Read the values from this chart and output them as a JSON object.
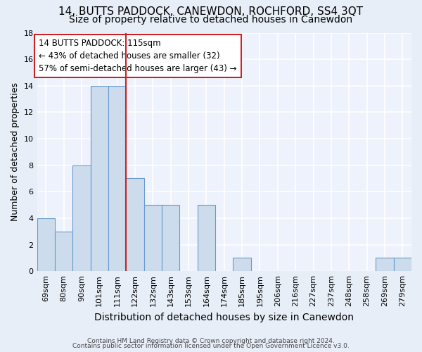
{
  "title": "14, BUTTS PADDOCK, CANEWDON, ROCHFORD, SS4 3QT",
  "subtitle": "Size of property relative to detached houses in Canewdon",
  "xlabel": "Distribution of detached houses by size in Canewdon",
  "ylabel": "Number of detached properties",
  "categories": [
    "69sqm",
    "80sqm",
    "90sqm",
    "101sqm",
    "111sqm",
    "122sqm",
    "132sqm",
    "143sqm",
    "153sqm",
    "164sqm",
    "174sqm",
    "185sqm",
    "195sqm",
    "206sqm",
    "216sqm",
    "227sqm",
    "237sqm",
    "248sqm",
    "258sqm",
    "269sqm",
    "279sqm"
  ],
  "values": [
    4,
    3,
    8,
    14,
    14,
    7,
    5,
    5,
    0,
    5,
    0,
    1,
    0,
    0,
    0,
    0,
    0,
    0,
    0,
    1,
    1
  ],
  "bar_color": "#ccdcec",
  "bar_edge_color": "#6699cc",
  "vline_x_index": 4,
  "vline_color": "#cc2222",
  "annotation_text": "14 BUTTS PADDOCK: 115sqm\n← 43% of detached houses are smaller (32)\n57% of semi-detached houses are larger (43) →",
  "annotation_box_color": "#ffffff",
  "annotation_box_edge": "#cc2222",
  "ylim": [
    0,
    18
  ],
  "yticks": [
    0,
    2,
    4,
    6,
    8,
    10,
    12,
    14,
    16,
    18
  ],
  "footer_line1": "Contains HM Land Registry data © Crown copyright and database right 2024.",
  "footer_line2": "Contains public sector information licensed under the Open Government Licence v3.0.",
  "bg_color": "#e8eef8",
  "plot_bg_color": "#eef2fc",
  "grid_color": "#ffffff",
  "title_fontsize": 11,
  "subtitle_fontsize": 10,
  "tick_fontsize": 8,
  "ylabel_fontsize": 9,
  "xlabel_fontsize": 10
}
